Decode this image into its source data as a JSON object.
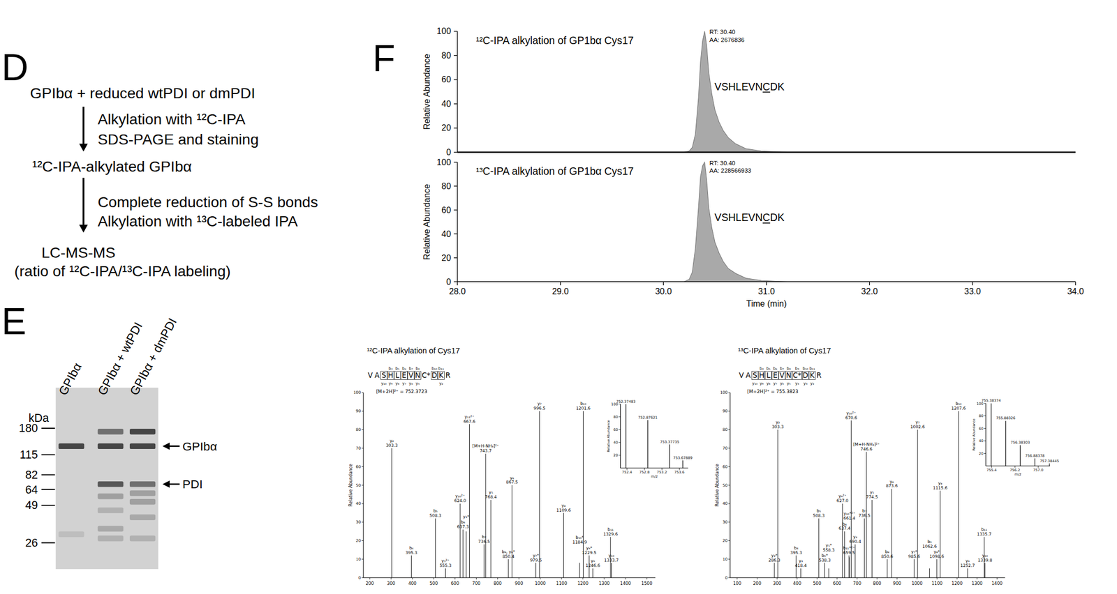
{
  "flow": {
    "label": "D",
    "nodes": [
      {
        "lines": [
          "GPIbα + reduced wtPDI or dmPDI"
        ]
      },
      {
        "lines": [
          "¹²C-IPA-alkylated GPIbα"
        ]
      },
      {
        "lines": [
          "LC-MS-MS",
          "(ratio of ¹²C-IPA/¹³C-IPA labeling)"
        ]
      }
    ],
    "arrows": [
      {
        "lines": [
          "Alkylation with ¹²C-IPA",
          "SDS-PAGE and staining"
        ]
      },
      {
        "lines": [
          "Complete reduction of S-S bonds",
          "Alkylation with ¹³C-labeled IPA"
        ]
      }
    ]
  },
  "gel": {
    "label": "E",
    "unit": "kDa",
    "markers": [
      180,
      115,
      82,
      64,
      49,
      26
    ],
    "lanes": [
      {
        "label": "GPIbα",
        "bands": [
          {
            "kDa": 133,
            "intensity": 0.85
          },
          {
            "kDa": 30,
            "intensity": 0.12
          }
        ]
      },
      {
        "label": "GPIbα + wtPDI",
        "bands": [
          {
            "kDa": 170,
            "intensity": 0.6
          },
          {
            "kDa": 133,
            "intensity": 0.85
          },
          {
            "kDa": 70,
            "intensity": 0.75
          },
          {
            "kDa": 57,
            "intensity": 0.3
          },
          {
            "kDa": 45,
            "intensity": 0.2
          },
          {
            "kDa": 33,
            "intensity": 0.25
          },
          {
            "kDa": 28,
            "intensity": 0.2
          }
        ]
      },
      {
        "label": "GPIbα + dmPDI",
        "bands": [
          {
            "kDa": 170,
            "intensity": 0.85
          },
          {
            "kDa": 133,
            "intensity": 0.85
          },
          {
            "kDa": 70,
            "intensity": 0.6
          },
          {
            "kDa": 60,
            "intensity": 0.3
          },
          {
            "kDa": 52,
            "intensity": 0.3
          },
          {
            "kDa": 40,
            "intensity": 0.25
          },
          {
            "kDa": 28,
            "intensity": 0.2
          }
        ]
      }
    ],
    "band_labels": [
      {
        "text": "GPIbα",
        "kDa": 133
      },
      {
        "text": "PDI",
        "kDa": 70
      }
    ]
  },
  "chart_data": [
    {
      "type": "area",
      "panel_label": "F",
      "title": "¹²C-IPA alkylation of GP1bα Cys17",
      "annotations": [
        "RT: 30.40",
        "AA: 2676836"
      ],
      "peptide": [
        "VSHLEVN",
        "C",
        "DK"
      ],
      "x": [
        28.0,
        30.2,
        30.25,
        30.28,
        30.31,
        30.34,
        30.36,
        30.38,
        30.4,
        30.42,
        30.44,
        30.47,
        30.5,
        30.54,
        30.58,
        30.63,
        30.7,
        30.8,
        30.95,
        31.2,
        34.0
      ],
      "values": [
        0,
        0,
        1,
        4,
        15,
        45,
        75,
        92,
        100,
        88,
        66,
        48,
        35,
        25,
        18,
        12,
        7,
        3,
        1,
        0,
        0
      ],
      "xlim": [
        28,
        34
      ],
      "ylim": [
        0,
        100
      ],
      "yticks": [
        0,
        20,
        40,
        60,
        80,
        100
      ],
      "y_label": "Relative Abundance",
      "tick_labels": "y",
      "color": "#a9a9a9"
    },
    {
      "type": "area",
      "title": "¹³C-IPA alkylation of GP1bα Cys17",
      "annotations": [
        "RT: 30.40",
        "AA: 228566933"
      ],
      "peptide": [
        "VSHLEVN",
        "C",
        "DK"
      ],
      "x": [
        28.0,
        30.2,
        30.25,
        30.28,
        30.31,
        30.34,
        30.36,
        30.38,
        30.4,
        30.42,
        30.44,
        30.47,
        30.5,
        30.54,
        30.58,
        30.63,
        30.7,
        30.8,
        30.95,
        31.2,
        34.0
      ],
      "values": [
        0,
        0,
        2,
        8,
        28,
        62,
        88,
        97,
        100,
        85,
        62,
        45,
        33,
        24,
        17,
        11,
        7,
        3,
        1,
        0,
        0
      ],
      "xlim": [
        28,
        34
      ],
      "ylim": [
        0,
        100
      ],
      "xticks": [
        {
          "value": 28,
          "label": "28.0"
        },
        {
          "value": 29,
          "label": "29.0"
        },
        {
          "value": 30,
          "label": "30.0"
        },
        {
          "value": 31,
          "label": "31.0"
        },
        {
          "value": 32,
          "label": "32.0"
        },
        {
          "value": 33,
          "label": "33.0"
        },
        {
          "value": 34,
          "label": "34.0"
        }
      ],
      "yticks": [
        0,
        20,
        40,
        60,
        80,
        100
      ],
      "y_label": "Relative Abundance",
      "x_label": "Time (min)",
      "color": "#a9a9a9"
    },
    {
      "type": "spectrum",
      "title": "¹²C-IPA alkylation of Cys17",
      "precursor": "[M+2H]²⁺ = 752.3723",
      "fragment_map": {
        "residues": [
          {
            "aa": "V"
          },
          {
            "aa": "A"
          },
          {
            "aa": "S",
            "boxed": true,
            "y": "y₁₀"
          },
          {
            "aa": "H",
            "boxed": true,
            "b": "b₄",
            "y": "y₉"
          },
          {
            "aa": "L",
            "boxed": true,
            "b": "b₅",
            "y": "y₈"
          },
          {
            "aa": "E",
            "boxed": true,
            "b": "b₆",
            "y": "y₇"
          },
          {
            "aa": "V",
            "boxed": true,
            "b": "b₇",
            "y": "y₆"
          },
          {
            "aa": "N",
            "boxed": true,
            "b": "b₈",
            "y": "y₅"
          },
          {
            "aa": "C*"
          },
          {
            "aa": "D",
            "boxed": true,
            "b": "b₁₀"
          },
          {
            "aa": "K",
            "boxed": true,
            "b": "b₁₁",
            "y": "y₂"
          },
          {
            "aa": "R"
          }
        ]
      },
      "peaks": [
        {
          "mz": 303.3,
          "intensity": 70,
          "ion": "y₂",
          "label": "303.3"
        },
        {
          "mz": 395.3,
          "intensity": 12,
          "ion": "b₄",
          "label": "395.3"
        },
        {
          "mz": 508.3,
          "intensity": 32,
          "ion": "b₅",
          "label": "508.3"
        },
        {
          "mz": 555.3,
          "intensity": 5,
          "ion": "y₅²⁺",
          "label": "555.3"
        },
        {
          "mz": 624.0,
          "intensity": 40,
          "ion": "y₁₀²⁺",
          "label": "624.0"
        },
        {
          "mz": 637.3,
          "intensity": 26,
          "ion": "b₆",
          "label": "637.3"
        },
        {
          "mz": 652.3,
          "intensity": 25,
          "ion": "y₄*"
        },
        {
          "mz": 667.6,
          "intensity": 83,
          "ion": "y₁₁²⁺",
          "label": "667.6"
        },
        {
          "mz": 736.5,
          "intensity": 18,
          "ion": "b₇",
          "label": "736.5"
        },
        {
          "mz": 743.7,
          "intensity": 67,
          "ion": "[M+H-NH₃]²⁺",
          "label": "743.7"
        },
        {
          "mz": 768.4,
          "intensity": 42,
          "ion": "y₅",
          "label": "768.4"
        },
        {
          "mz": 850.4,
          "intensity": 10,
          "ion": "b₈, y₆*",
          "label": "850.4"
        },
        {
          "mz": 867.5,
          "intensity": 50,
          "ion": "y₆",
          "label": "867.5"
        },
        {
          "mz": 979.5,
          "intensity": 8,
          "ion": "y₇*",
          "label": "979.5"
        },
        {
          "mz": 996.5,
          "intensity": 90,
          "ion": "y₇",
          "label": "996.5"
        },
        {
          "mz": 1109.6,
          "intensity": 35,
          "ion": "y₈",
          "label": "1109.6"
        },
        {
          "mz": 1184.9,
          "intensity": 8,
          "ion": "b₁₀*",
          "label": "1184.9"
        },
        {
          "mz": 1201.6,
          "intensity": 90,
          "ion": "b₁₀",
          "label": "1201.6"
        },
        {
          "mz": 1229.5,
          "intensity": 12,
          "ion": "y₉*",
          "label": "1229.5"
        },
        {
          "mz": 1246.6,
          "intensity": 5,
          "ion": "y₉",
          "label": "1246.6"
        },
        {
          "mz": 1329.6,
          "intensity": 22,
          "ion": "b₁₁",
          "label": "1329.6"
        },
        {
          "mz": 1333.7,
          "intensity": 8,
          "ion": "y₁₀",
          "label": "1333.7"
        }
      ],
      "xlim": [
        170,
        1540
      ],
      "ylim": [
        0,
        100
      ],
      "xticks": [
        200,
        300,
        400,
        500,
        600,
        700,
        800,
        900,
        1000,
        1100,
        1200,
        1300,
        1400,
        1500
      ],
      "yticks": [
        0,
        10,
        20,
        30,
        40,
        50,
        60,
        70,
        80,
        90,
        100
      ],
      "y_label": "Relative Abundance",
      "color": "#000000"
    },
    {
      "type": "spectrum",
      "peaks": [
        {
          "mz": 752.37483,
          "intensity": 100,
          "label": "752.37483"
        },
        {
          "mz": 752.87621,
          "intensity": 75,
          "label": "752.87621"
        },
        {
          "mz": 753.37735,
          "intensity": 37,
          "label": "753.37735"
        },
        {
          "mz": 753.67889,
          "intensity": 12,
          "label": "753.67889"
        }
      ],
      "xlim": [
        752.25,
        753.8
      ],
      "ylim": [
        0,
        100
      ],
      "xticks": [
        752.4,
        752.8,
        753.2,
        753.6
      ],
      "yticks": [
        20,
        40,
        60,
        80,
        100
      ],
      "y_label": "Relative Abundance",
      "x_label": "m/z",
      "color": "#000000"
    },
    {
      "type": "spectrum",
      "title": "¹³C-IPA alkylation of Cys17",
      "precursor": "[M+2H]²⁺ = 755.3823",
      "fragment_map": {
        "residues": [
          {
            "aa": "V"
          },
          {
            "aa": "A"
          },
          {
            "aa": "S",
            "boxed": true,
            "y": "y₁₀"
          },
          {
            "aa": "H",
            "boxed": true,
            "b": "b₄",
            "y": "y₉"
          },
          {
            "aa": "L",
            "boxed": true,
            "b": "b₅",
            "y": "y₈"
          },
          {
            "aa": "E",
            "boxed": true,
            "b": "b₆",
            "y": "y₇"
          },
          {
            "aa": "V",
            "boxed": true,
            "b": "b₇",
            "y": "y₆"
          },
          {
            "aa": "N",
            "boxed": true,
            "b": "b₈",
            "y": "y₅"
          },
          {
            "aa": "C*",
            "boxed": true,
            "b": "b₉",
            "y": "y₄"
          },
          {
            "aa": "D",
            "boxed": true,
            "b": "b₁₀",
            "y": "y₃"
          },
          {
            "aa": "K",
            "boxed": true,
            "b": "b₁₁",
            "y": "y₂"
          },
          {
            "aa": "R"
          }
        ]
      },
      "peaks": [
        {
          "mz": 286.3,
          "intensity": 8,
          "ion": "y₂*",
          "label": "286.3"
        },
        {
          "mz": 303.3,
          "intensity": 80,
          "ion": "y₂",
          "label": "303.3"
        },
        {
          "mz": 395.3,
          "intensity": 12,
          "ion": "b₄",
          "label": "395.3"
        },
        {
          "mz": 418.4,
          "intensity": 5,
          "ion": "y₃",
          "label": "418.4"
        },
        {
          "mz": 508.3,
          "intensity": 32,
          "ion": "b₅",
          "label": "508.3"
        },
        {
          "mz": 538.3,
          "intensity": 8,
          "ion": "b₆*",
          "label": "538.3"
        },
        {
          "mz": 558.3,
          "intensity": 5,
          "ion": "y₅*",
          "label": "558.3"
        },
        {
          "mz": 627.0,
          "intensity": 40,
          "ion": "y₉²⁺",
          "label": "627.0"
        },
        {
          "mz": 637.4,
          "intensity": 25,
          "ion": "b₆",
          "label": "637.4"
        },
        {
          "mz": 659.5,
          "intensity": 12,
          "ion": "b₁₁*²⁺",
          "label": "659.5"
        },
        {
          "mz": 661.4,
          "intensity": 11,
          "ion": "y₁₀*²⁺",
          "label": "661.4"
        },
        {
          "mz": 670.6,
          "intensity": 85,
          "ion": "y₁₀²⁺",
          "label": "670.6"
        },
        {
          "mz": 690.4,
          "intensity": 18,
          "ion": "y₄",
          "label": "690.4"
        },
        {
          "mz": 736.5,
          "intensity": 32,
          "ion": "b₇",
          "label": "736.5"
        },
        {
          "mz": 746.6,
          "intensity": 68,
          "ion": "[M+H-NH₃]²⁺",
          "label": "746.6"
        },
        {
          "mz": 774.5,
          "intensity": 42,
          "ion": "y₅",
          "label": "774.5"
        },
        {
          "mz": 850.6,
          "intensity": 10,
          "ion": "b₈",
          "label": "850.6"
        },
        {
          "mz": 873.6,
          "intensity": 48,
          "ion": "y₆",
          "label": "873.6"
        },
        {
          "mz": 985.6,
          "intensity": 10,
          "ion": "y₇*",
          "label": "985.6"
        },
        {
          "mz": 1002.6,
          "intensity": 80,
          "ion": "y₇",
          "label": "1002.6"
        },
        {
          "mz": 1062.6,
          "intensity": 5,
          "ion": "b₉",
          "label": "1062.6"
        },
        {
          "mz": 1098.6,
          "intensity": 10,
          "ion": "y₈*",
          "label": "1098.6"
        },
        {
          "mz": 1115.6,
          "intensity": 47,
          "ion": "y₈",
          "label": "1115.6"
        },
        {
          "mz": 1207.6,
          "intensity": 90,
          "ion": "b₁₀",
          "label": "1207.6"
        },
        {
          "mz": 1252.7,
          "intensity": 5,
          "ion": "y₉",
          "label": "1252.7"
        },
        {
          "mz": 1335.7,
          "intensity": 22,
          "ion": "b₁₁",
          "label": "1335.7"
        },
        {
          "mz": 1339.8,
          "intensity": 8,
          "ion": "y₁₀",
          "label": "1339.8"
        }
      ],
      "xlim": [
        65,
        1440
      ],
      "ylim": [
        0,
        100
      ],
      "xticks": [
        100,
        200,
        300,
        400,
        500,
        600,
        700,
        800,
        900,
        1000,
        1100,
        1200,
        1300,
        1400
      ],
      "yticks": [
        0,
        10,
        20,
        30,
        40,
        50,
        60,
        70,
        80,
        90,
        100
      ],
      "y_label": "Relative Abundance",
      "color": "#000000"
    },
    {
      "type": "spectrum",
      "peaks": [
        {
          "mz": 755.38374,
          "intensity": 100,
          "label": "755.38374"
        },
        {
          "mz": 755.88326,
          "intensity": 72,
          "label": "755.88326"
        },
        {
          "mz": 756.38303,
          "intensity": 33,
          "label": "756.38303"
        },
        {
          "mz": 756.88378,
          "intensity": 12,
          "label": "756.88378"
        },
        {
          "mz": 757.38445,
          "intensity": 4,
          "label": "757.38445"
        }
      ],
      "xlim": [
        755.2,
        757.4
      ],
      "ylim": [
        0,
        100
      ],
      "xticks": [
        755.4,
        756.2,
        {
          "value": 757,
          "label": "757.0"
        }
      ],
      "yticks": [
        20,
        40,
        60,
        80,
        100
      ],
      "y_label": "Relative Abundance",
      "x_label": "m/z",
      "color": "#000000"
    }
  ]
}
